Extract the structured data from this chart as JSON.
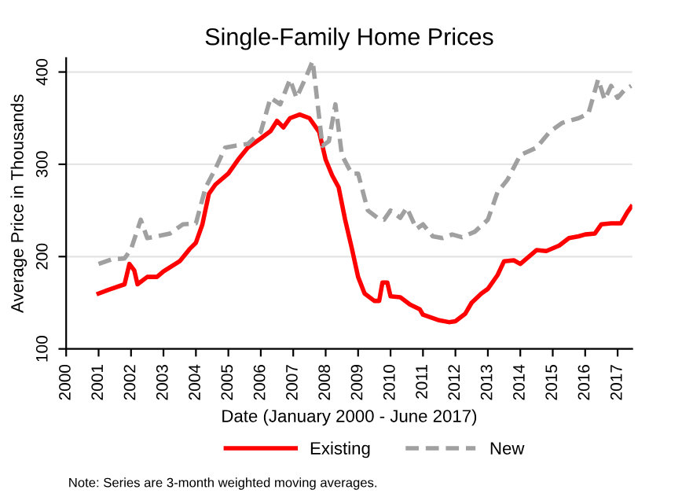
{
  "chart_data": {
    "type": "line",
    "title": "Single-Family Home Prices",
    "xlabel": "Date (January 2000 - June 2017)",
    "ylabel": "Average Price in Thousands",
    "annotations": [
      "Note: Series are 3-month weighted moving averages."
    ],
    "xlim": [
      2000,
      2017.45
    ],
    "xticks": [
      2000,
      2001,
      2002,
      2003,
      2004,
      2005,
      2006,
      2007,
      2008,
      2009,
      2010,
      2011,
      2012,
      2013,
      2014,
      2015,
      2016,
      2017
    ],
    "ylim": [
      100,
      415
    ],
    "yticks": [
      100,
      200,
      300,
      400
    ],
    "grid": "y",
    "legend": "bottom",
    "series": [
      {
        "name": "Existing",
        "color": "#ff0000",
        "line_style": "solid",
        "x": [
          2001.0,
          2001.3,
          2001.8,
          2001.95,
          2002.1,
          2002.2,
          2002.5,
          2002.8,
          2003.0,
          2003.5,
          2003.8,
          2004.0,
          2004.2,
          2004.4,
          2004.6,
          2005.0,
          2005.3,
          2005.6,
          2006.0,
          2006.3,
          2006.5,
          2006.7,
          2006.9,
          2007.2,
          2007.5,
          2007.8,
          2008.0,
          2008.2,
          2008.4,
          2008.6,
          2008.8,
          2009.0,
          2009.2,
          2009.5,
          2009.65,
          2009.75,
          2009.9,
          2010.0,
          2010.3,
          2010.6,
          2010.9,
          2011.0,
          2011.5,
          2011.8,
          2012.0,
          2012.3,
          2012.5,
          2012.8,
          2013.0,
          2013.3,
          2013.5,
          2013.8,
          2014.0,
          2014.2,
          2014.5,
          2014.8,
          2015.2,
          2015.5,
          2015.8,
          2016.0,
          2016.3,
          2016.5,
          2016.8,
          2017.1,
          2017.3,
          2017.42
        ],
        "values": [
          160,
          164,
          170,
          192,
          185,
          170,
          178,
          178,
          184,
          195,
          208,
          215,
          235,
          268,
          278,
          290,
          305,
          318,
          328,
          336,
          347,
          340,
          350,
          354,
          350,
          335,
          305,
          288,
          275,
          240,
          210,
          178,
          160,
          152,
          152,
          172,
          172,
          157,
          156,
          148,
          143,
          137,
          131,
          129,
          130,
          138,
          150,
          160,
          165,
          180,
          195,
          196,
          192,
          198,
          207,
          206,
          212,
          220,
          222,
          224,
          225,
          235,
          236,
          236,
          248,
          254
        ]
      },
      {
        "name": "New",
        "color": "#a0a0a0",
        "line_style": "dashed",
        "x": [
          2001.0,
          2001.4,
          2001.8,
          2002.0,
          2002.3,
          2002.5,
          2002.8,
          2003.2,
          2003.6,
          2004.0,
          2004.3,
          2004.6,
          2004.9,
          2005.2,
          2005.6,
          2006.0,
          2006.3,
          2006.6,
          2006.9,
          2007.1,
          2007.4,
          2007.6,
          2007.9,
          2008.1,
          2008.3,
          2008.5,
          2008.8,
          2009.0,
          2009.3,
          2009.6,
          2009.8,
          2010.0,
          2010.3,
          2010.5,
          2010.8,
          2011.0,
          2011.3,
          2011.6,
          2011.9,
          2012.2,
          2012.6,
          2013.0,
          2013.3,
          2013.6,
          2014.0,
          2014.5,
          2014.9,
          2015.3,
          2015.8,
          2016.1,
          2016.4,
          2016.6,
          2016.8,
          2017.0,
          2017.2,
          2017.42
        ],
        "values": [
          192,
          197,
          198,
          208,
          240,
          220,
          222,
          225,
          235,
          236,
          275,
          295,
          318,
          320,
          322,
          335,
          372,
          365,
          392,
          372,
          395,
          412,
          320,
          325,
          365,
          310,
          290,
          290,
          250,
          242,
          240,
          250,
          242,
          253,
          230,
          235,
          222,
          220,
          224,
          221,
          227,
          240,
          270,
          283,
          310,
          318,
          335,
          345,
          350,
          355,
          392,
          370,
          385,
          372,
          380,
          385
        ]
      }
    ]
  }
}
